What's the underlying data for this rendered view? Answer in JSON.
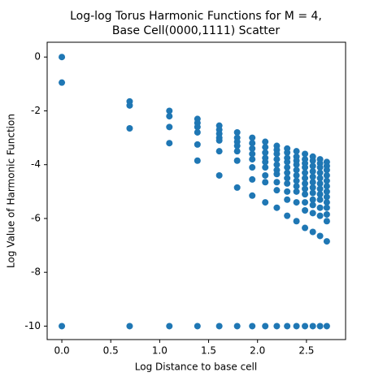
{
  "chart_data": {
    "type": "scatter",
    "title": [
      "Log-log Torus Harmonic Functions for M = 4,",
      "Base Cell(0000,1111) Scatter"
    ],
    "x_label": "Log Distance to base cell",
    "y_label": "Log Value of Harmonic Function",
    "color": "#1f77b4",
    "xlim": [
      -0.15,
      2.9
    ],
    "ylim": [
      -10.5,
      0.55
    ],
    "xticks": [
      {
        "value": 0,
        "label": "0.0"
      },
      0.5,
      {
        "value": 1,
        "label": "1.0"
      },
      1.5,
      {
        "value": 2,
        "label": "2.0"
      },
      2.5
    ],
    "yticks": [
      0,
      -2,
      -4,
      -6,
      -8,
      -10
    ],
    "x": [
      0,
      0,
      0,
      0.693,
      0.693,
      0.693,
      0.693,
      1.099,
      1.099,
      1.099,
      1.099,
      1.099,
      1.386,
      1.386,
      1.386,
      1.386,
      1.386,
      1.386,
      1.386,
      1.609,
      1.609,
      1.609,
      1.609,
      1.609,
      1.609,
      1.609,
      1.609,
      1.792,
      1.792,
      1.792,
      1.792,
      1.792,
      1.792,
      1.792,
      1.792,
      1.946,
      1.946,
      1.946,
      1.946,
      1.946,
      1.946,
      1.946,
      1.946,
      1.946,
      2.079,
      2.079,
      2.079,
      2.079,
      2.079,
      2.079,
      2.079,
      2.079,
      2.079,
      2.079,
      2.197,
      2.197,
      2.197,
      2.197,
      2.197,
      2.197,
      2.197,
      2.197,
      2.197,
      2.197,
      2.197,
      2.303,
      2.303,
      2.303,
      2.303,
      2.303,
      2.303,
      2.303,
      2.303,
      2.303,
      2.303,
      2.303,
      2.303,
      2.398,
      2.398,
      2.398,
      2.398,
      2.398,
      2.398,
      2.398,
      2.398,
      2.398,
      2.398,
      2.398,
      2.398,
      2.485,
      2.485,
      2.485,
      2.485,
      2.485,
      2.485,
      2.485,
      2.485,
      2.485,
      2.485,
      2.485,
      2.485,
      2.485,
      2.565,
      2.565,
      2.565,
      2.565,
      2.565,
      2.565,
      2.565,
      2.565,
      2.565,
      2.565,
      2.565,
      2.565,
      2.565,
      2.639,
      2.639,
      2.639,
      2.639,
      2.639,
      2.639,
      2.639,
      2.639,
      2.639,
      2.639,
      2.639,
      2.639,
      2.639,
      2.708,
      2.708,
      2.708,
      2.708,
      2.708,
      2.708,
      2.708,
      2.708,
      2.708,
      2.708,
      2.708,
      2.708,
      2.708,
      2.708
    ],
    "y": [
      0,
      -0.95,
      -10,
      -1.65,
      -1.8,
      -2.65,
      -10,
      -2.0,
      -2.2,
      -2.6,
      -3.2,
      -10,
      -2.3,
      -2.45,
      -2.6,
      -2.8,
      -3.25,
      -3.85,
      -10,
      -2.55,
      -2.7,
      -2.85,
      -3.0,
      -3.1,
      -3.5,
      -4.4,
      -10,
      -2.8,
      -3.0,
      -3.15,
      -3.3,
      -3.5,
      -3.85,
      -4.85,
      -10,
      -3.0,
      -3.2,
      -3.4,
      -3.6,
      -3.8,
      -4.1,
      -4.55,
      -5.15,
      -10,
      -3.15,
      -3.35,
      -3.55,
      -3.75,
      -3.9,
      -4.1,
      -4.4,
      -4.65,
      -5.4,
      -10,
      -3.3,
      -3.45,
      -3.6,
      -3.8,
      -4.0,
      -4.2,
      -4.35,
      -4.65,
      -4.95,
      -5.6,
      -10,
      -3.4,
      -3.55,
      -3.75,
      -3.9,
      -4.1,
      -4.3,
      -4.5,
      -4.7,
      -5.0,
      -5.3,
      -5.9,
      -10,
      -3.5,
      -3.7,
      -3.85,
      -4.0,
      -4.2,
      -4.4,
      -4.6,
      -4.8,
      -5.0,
      -5.4,
      -6.1,
      -10,
      -3.6,
      -3.8,
      -3.95,
      -4.1,
      -4.3,
      -4.5,
      -4.7,
      -4.9,
      -5.1,
      -5.4,
      -5.7,
      -6.35,
      -10,
      -3.7,
      -3.85,
      -4.05,
      -4.25,
      -4.45,
      -4.65,
      -4.85,
      -5.05,
      -5.3,
      -5.5,
      -5.8,
      -6.5,
      -10,
      -3.8,
      -3.95,
      -4.1,
      -4.3,
      -4.5,
      -4.7,
      -4.9,
      -5.1,
      -5.3,
      -5.6,
      -5.9,
      -6.65,
      -10,
      -3.9,
      -4.05,
      -4.2,
      -4.4,
      -4.6,
      -4.8,
      -5.0,
      -5.2,
      -5.4,
      -5.6,
      -5.85,
      -6.1,
      -6.85,
      -10
    ]
  }
}
